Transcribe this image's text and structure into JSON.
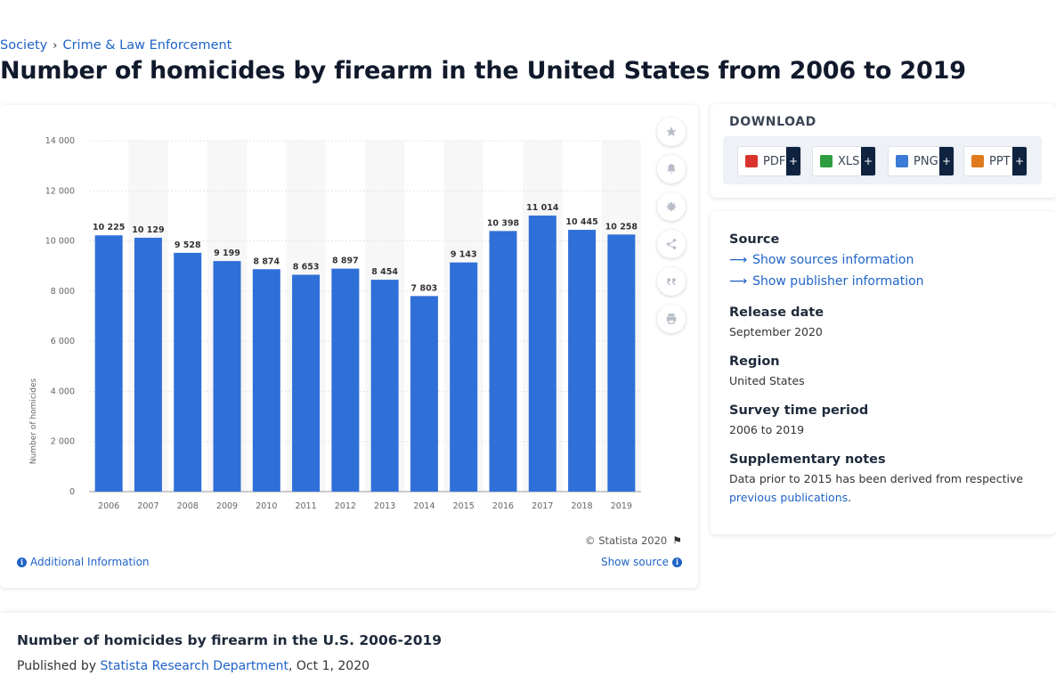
{
  "breadcrumb": {
    "items": [
      "Society",
      "Crime & Law Enforcement"
    ],
    "separator": "›"
  },
  "page_title": "Number of homicides by firearm in the United States from 2006 to 2019",
  "chart_data": {
    "type": "bar",
    "categories": [
      "2006",
      "2007",
      "2008",
      "2009",
      "2010",
      "2011",
      "2012",
      "2013",
      "2014",
      "2015",
      "2016",
      "2017",
      "2018",
      "2019"
    ],
    "values": [
      10225,
      10129,
      9528,
      9199,
      8874,
      8653,
      8897,
      8454,
      7803,
      9143,
      10398,
      11014,
      10445,
      10258
    ],
    "value_labels": [
      "10 225",
      "10 129",
      "9 528",
      "9 199",
      "8 874",
      "8 653",
      "8 897",
      "8 454",
      "7 803",
      "9 143",
      "10 398",
      "11 014",
      "10 445",
      "10 258"
    ],
    "ylabel": "Number of homicides",
    "xlabel": "",
    "ylim": [
      0,
      14000
    ],
    "yticks": [
      0,
      2000,
      4000,
      6000,
      8000,
      10000,
      12000,
      14000
    ],
    "ytick_labels": [
      "0",
      "2 000",
      "4 000",
      "6 000",
      "8 000",
      "10 000",
      "12 000",
      "14 000"
    ],
    "grid": true,
    "bar_color": "#2f6fd8"
  },
  "chart_footer": {
    "copyright": "© Statista 2020",
    "additional_info": "Additional Information",
    "show_source": "Show source"
  },
  "side_tools": [
    "star-icon",
    "bell-icon",
    "gear-icon",
    "share-icon",
    "quote-icon",
    "print-icon"
  ],
  "download": {
    "title": "DOWNLOAD",
    "buttons": [
      {
        "label": "PDF",
        "color": "#d9342b"
      },
      {
        "label": "XLS",
        "color": "#2e9d3f"
      },
      {
        "label": "PNG",
        "color": "#3a7bd5"
      },
      {
        "label": "PPT",
        "color": "#e07a1f"
      }
    ],
    "plus": "+"
  },
  "meta": {
    "source_label": "Source",
    "show_sources": "Show sources information",
    "show_publisher": "Show publisher information",
    "release_label": "Release date",
    "release_value": "September 2020",
    "region_label": "Region",
    "region_value": "United States",
    "period_label": "Survey time period",
    "period_value": "2006 to 2019",
    "notes_label": "Supplementary notes",
    "notes_value": "Data prior to 2015 has been derived from respective",
    "notes_link": "previous publications",
    "notes_end": "."
  },
  "bottom": {
    "title": "Number of homicides by firearm in the U.S. 2006-2019",
    "published_by": "Published by",
    "publisher": "Statista Research Department",
    "date": ", Oct 1, 2020"
  }
}
